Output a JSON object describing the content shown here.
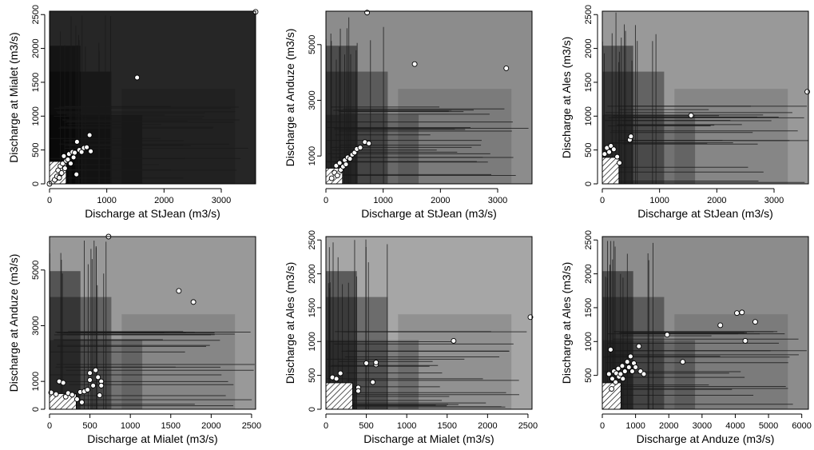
{
  "chart_data": [
    {
      "type": "scatter",
      "title": "",
      "xlabel": "Discharge at  StJean (m3/s)",
      "ylabel": "Discharge at Mialet (m3/s)",
      "xlim": [
        0,
        3600
      ],
      "ylim": [
        0,
        2550
      ],
      "xticks": [
        "0",
        "1000",
        "2000",
        "3000"
      ],
      "yticks": [
        "0",
        "500",
        "1000",
        "1500",
        "2000",
        "2500"
      ],
      "xtick_values": [
        0,
        1000,
        2000,
        3000
      ],
      "ytick_values": [
        0,
        500,
        1000,
        1500,
        2000,
        2500
      ],
      "background_level": "#262626",
      "hatched_box": {
        "x": [
          0,
          290
        ],
        "y": [
          0,
          330
        ]
      },
      "points": [
        [
          0,
          0
        ],
        [
          90,
          60
        ],
        [
          130,
          110
        ],
        [
          150,
          200
        ],
        [
          170,
          90
        ],
        [
          190,
          260
        ],
        [
          210,
          160
        ],
        [
          230,
          300
        ],
        [
          250,
          410
        ],
        [
          270,
          230
        ],
        [
          290,
          340
        ],
        [
          320,
          360
        ],
        [
          340,
          440
        ],
        [
          370,
          300
        ],
        [
          400,
          470
        ],
        [
          420,
          390
        ],
        [
          440,
          460
        ],
        [
          470,
          140
        ],
        [
          480,
          620
        ],
        [
          520,
          500
        ],
        [
          560,
          470
        ],
        [
          600,
          530
        ],
        [
          650,
          540
        ],
        [
          700,
          720
        ],
        [
          720,
          480
        ],
        [
          1530,
          1570
        ],
        [
          3600,
          2540
        ]
      ]
    },
    {
      "type": "scatter",
      "title": "",
      "xlabel": "Discharge at  StJean (m3/s)",
      "ylabel": "Discharge at Anduze (m3/s)",
      "xlim": [
        0,
        3600
      ],
      "ylim": [
        0,
        6200
      ],
      "xticks": [
        "0",
        "1000",
        "2000",
        "3000"
      ],
      "yticks": [
        "1000",
        "3000",
        "5000"
      ],
      "xtick_values": [
        0,
        1000,
        2000,
        3000
      ],
      "ytick_values": [
        1000,
        3000,
        5000
      ],
      "background_level": "#8c8c8c",
      "hatched_box": {
        "x": [
          0,
          290
        ],
        "y": [
          0,
          560
        ]
      },
      "points": [
        [
          100,
          200
        ],
        [
          150,
          400
        ],
        [
          180,
          650
        ],
        [
          200,
          300
        ],
        [
          240,
          750
        ],
        [
          260,
          500
        ],
        [
          300,
          620
        ],
        [
          330,
          850
        ],
        [
          350,
          700
        ],
        [
          380,
          950
        ],
        [
          420,
          900
        ],
        [
          460,
          1050
        ],
        [
          500,
          1120
        ],
        [
          540,
          1250
        ],
        [
          600,
          1300
        ],
        [
          680,
          1500
        ],
        [
          750,
          1450
        ],
        [
          1550,
          4300
        ],
        [
          3150,
          4150
        ],
        [
          720,
          6150
        ]
      ]
    },
    {
      "type": "scatter",
      "title": "",
      "xlabel": "Discharge at  StJean (m3/s)",
      "ylabel": "Discharge at Ales (m3/s)",
      "xlim": [
        0,
        3600
      ],
      "ylim": [
        0,
        2550
      ],
      "xticks": [
        "0",
        "1000",
        "2000",
        "3000"
      ],
      "yticks": [
        "0",
        "500",
        "1000",
        "1500",
        "2000",
        "2500"
      ],
      "xtick_values": [
        0,
        1000,
        2000,
        3000
      ],
      "ytick_values": [
        0,
        500,
        1000,
        1500,
        2000,
        2500
      ],
      "background_level": "#999999",
      "hatched_box": {
        "x": [
          0,
          290
        ],
        "y": [
          0,
          390
        ]
      },
      "points": [
        [
          40,
          440
        ],
        [
          80,
          530
        ],
        [
          120,
          470
        ],
        [
          150,
          560
        ],
        [
          200,
          510
        ],
        [
          260,
          400
        ],
        [
          300,
          310
        ],
        [
          480,
          650
        ],
        [
          500,
          700
        ],
        [
          1550,
          1010
        ],
        [
          3580,
          1360
        ]
      ]
    },
    {
      "type": "scatter",
      "title": "",
      "xlabel": "Discharge at Mialet (m3/s)",
      "ylabel": "Discharge at Anduze (m3/s)",
      "xlim": [
        0,
        2550
      ],
      "ylim": [
        0,
        6200
      ],
      "xticks": [
        "0",
        "500",
        "1000",
        "1500",
        "2000",
        "2500"
      ],
      "yticks": [
        "0",
        "1000",
        "3000",
        "5000"
      ],
      "xtick_values": [
        0,
        500,
        1000,
        1500,
        2000,
        2500
      ],
      "ytick_values": [
        0,
        1000,
        3000,
        5000
      ],
      "background_level": "#999999",
      "hatched_box": {
        "x": [
          0,
          330
        ],
        "y": [
          0,
          560
        ]
      },
      "points": [
        [
          20,
          600
        ],
        [
          80,
          540
        ],
        [
          120,
          1000
        ],
        [
          170,
          950
        ],
        [
          200,
          450
        ],
        [
          230,
          580
        ],
        [
          280,
          520
        ],
        [
          340,
          360
        ],
        [
          380,
          620
        ],
        [
          400,
          250
        ],
        [
          430,
          640
        ],
        [
          470,
          700
        ],
        [
          500,
          1050
        ],
        [
          500,
          1300
        ],
        [
          540,
          850
        ],
        [
          570,
          1400
        ],
        [
          600,
          1150
        ],
        [
          620,
          500
        ],
        [
          640,
          1000
        ],
        [
          640,
          850
        ],
        [
          1600,
          4250
        ],
        [
          1780,
          3850
        ],
        [
          730,
          6200
        ]
      ]
    },
    {
      "type": "scatter",
      "title": "",
      "xlabel": "Discharge at Mialet (m3/s)",
      "ylabel": "Discharge at Ales (m3/s)",
      "xlim": [
        0,
        2550
      ],
      "ylim": [
        0,
        2550
      ],
      "xticks": [
        "0",
        "500",
        "1000",
        "1500",
        "2000",
        "2500"
      ],
      "yticks": [
        "0",
        "500",
        "1000",
        "1500",
        "2000",
        "2500"
      ],
      "xtick_values": [
        0,
        500,
        1000,
        1500,
        2000,
        2500
      ],
      "ytick_values": [
        0,
        500,
        1000,
        1500,
        2000,
        2500
      ],
      "background_level": "#a6a6a6",
      "hatched_box": {
        "x": [
          0,
          330
        ],
        "y": [
          0,
          390
        ]
      },
      "points": [
        [
          80,
          470
        ],
        [
          130,
          450
        ],
        [
          180,
          530
        ],
        [
          400,
          320
        ],
        [
          400,
          270
        ],
        [
          500,
          680
        ],
        [
          580,
          400
        ],
        [
          620,
          660
        ],
        [
          620,
          690
        ],
        [
          1580,
          1010
        ],
        [
          2530,
          1360
        ]
      ]
    },
    {
      "type": "scatter",
      "title": "",
      "xlabel": "Discharge at Anduze (m3/s)",
      "ylabel": "Discharge at Ales (m3/s)",
      "xlim": [
        0,
        6200
      ],
      "ylim": [
        0,
        2550
      ],
      "xticks": [
        "0",
        "1000",
        "2000",
        "3000",
        "4000",
        "5000",
        "6000"
      ],
      "yticks": [
        "500",
        "1000",
        "1500",
        "2000",
        "2500"
      ],
      "xtick_values": [
        0,
        1000,
        2000,
        3000,
        4000,
        5000,
        6000
      ],
      "ytick_values": [
        500,
        1000,
        1500,
        2000,
        2500
      ],
      "background_level": "#8c8c8c",
      "hatched_box": {
        "x": [
          0,
          560
        ],
        "y": [
          0,
          390
        ]
      },
      "points": [
        [
          200,
          520
        ],
        [
          250,
          880
        ],
        [
          280,
          300
        ],
        [
          300,
          450
        ],
        [
          350,
          560
        ],
        [
          400,
          400
        ],
        [
          420,
          530
        ],
        [
          480,
          600
        ],
        [
          500,
          480
        ],
        [
          550,
          520
        ],
        [
          600,
          640
        ],
        [
          620,
          450
        ],
        [
          680,
          560
        ],
        [
          750,
          700
        ],
        [
          800,
          620
        ],
        [
          850,
          780
        ],
        [
          900,
          560
        ],
        [
          950,
          680
        ],
        [
          1000,
          620
        ],
        [
          1100,
          930
        ],
        [
          1150,
          560
        ],
        [
          1250,
          520
        ],
        [
          1950,
          1100
        ],
        [
          2420,
          700
        ],
        [
          3550,
          1240
        ],
        [
          4050,
          1420
        ],
        [
          4200,
          1430
        ],
        [
          4300,
          1010
        ],
        [
          4600,
          1290
        ]
      ]
    }
  ]
}
